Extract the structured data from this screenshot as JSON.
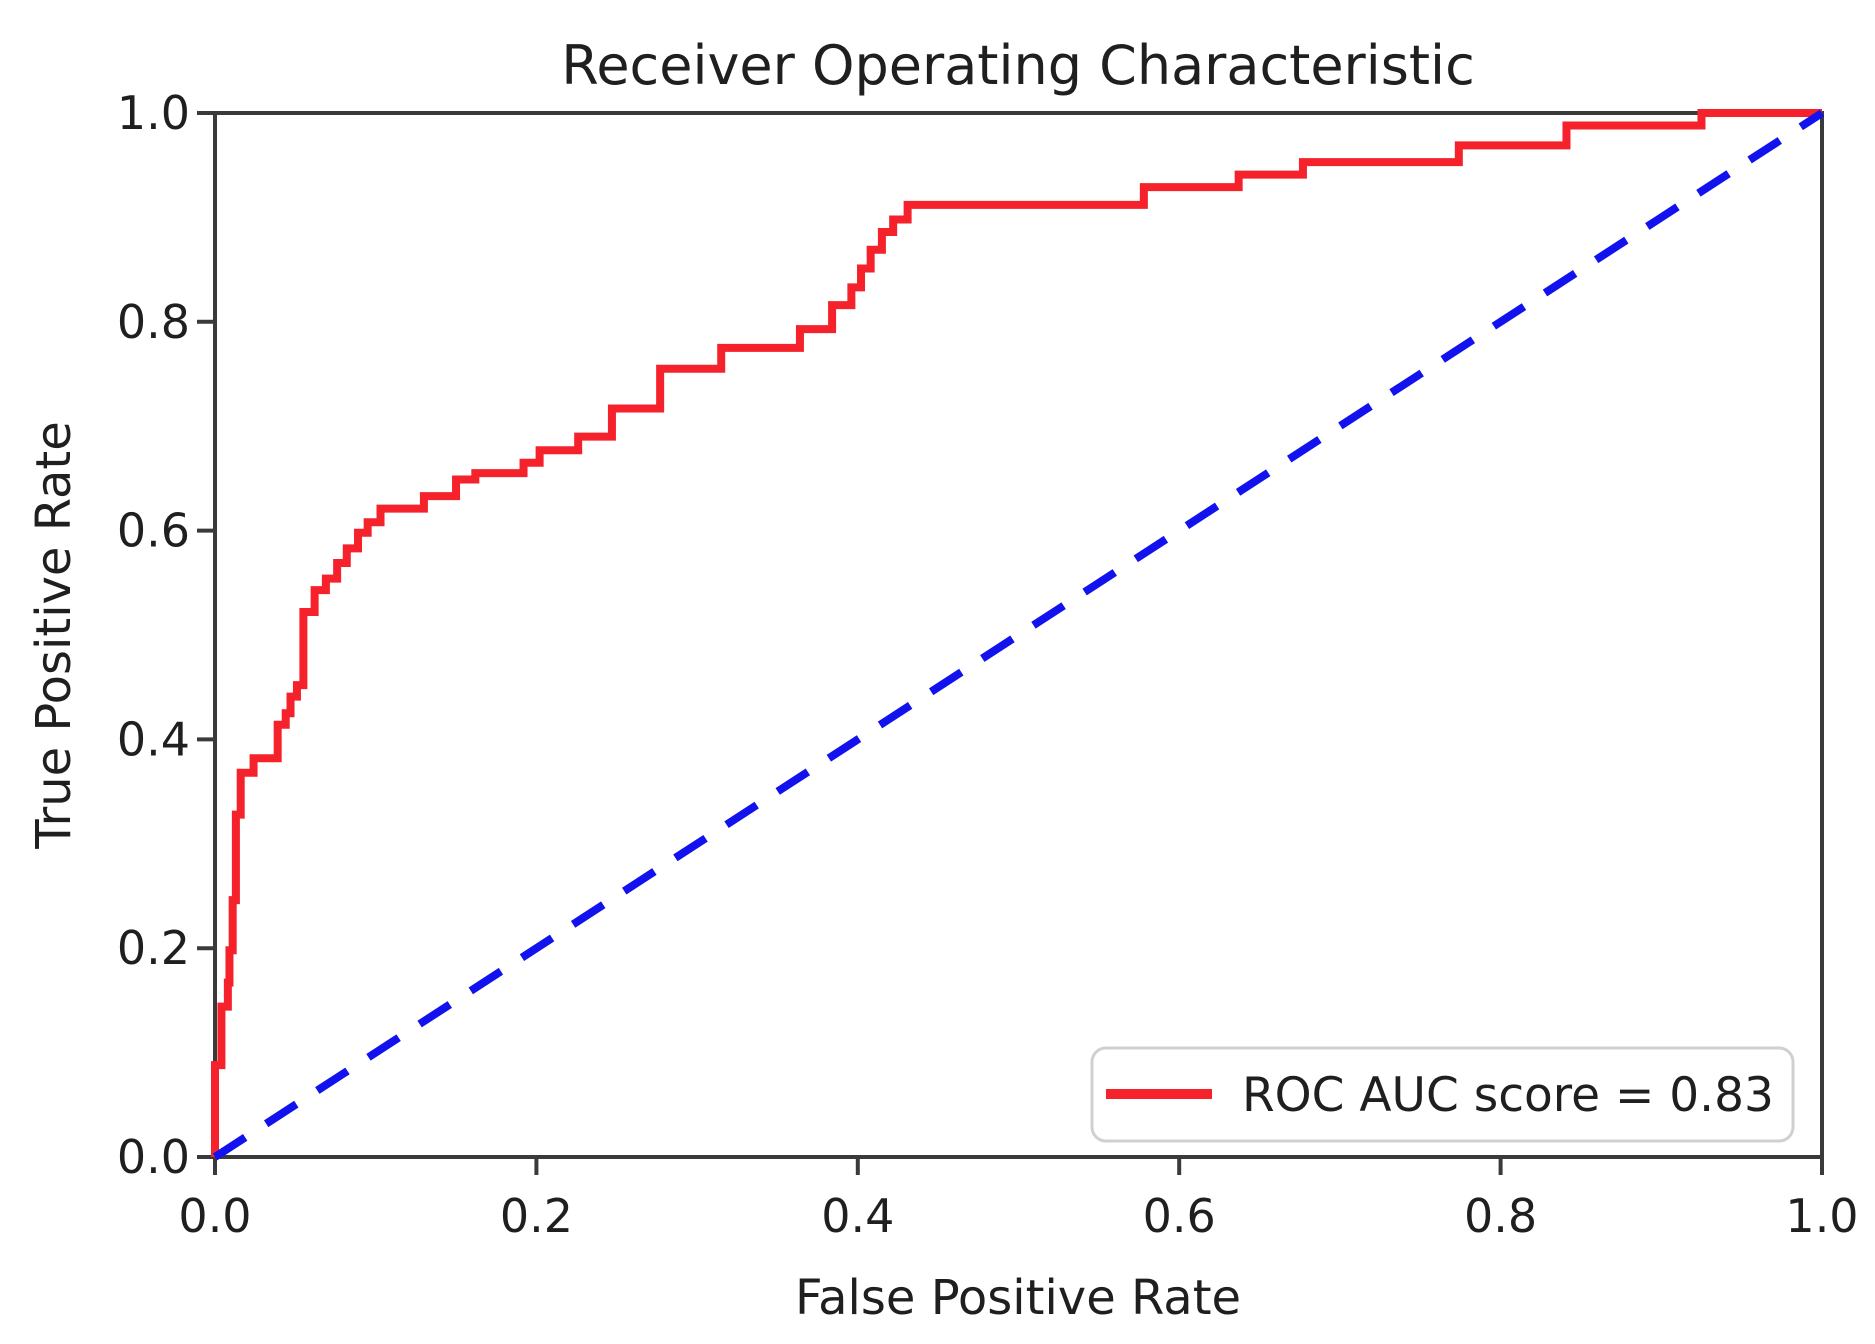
{
  "figure": {
    "background": "#ffffff",
    "spine_color": "#3a3a3a",
    "text_color": "#1f1f1f"
  },
  "legend": {
    "position": "lower right",
    "label": "ROC AUC score = 0.83",
    "swatch_color": "#f5212b",
    "border_color": "#d0d0d0",
    "background": "#ffffff"
  },
  "chart_data": {
    "type": "line",
    "subtype": "roc-step-curve",
    "title": "Receiver Operating Characteristic",
    "xlabel": "False Positive Rate",
    "ylabel": "True Positive Rate",
    "xlim": [
      0.0,
      1.0
    ],
    "ylim": [
      0.0,
      1.0
    ],
    "x_ticks": [
      0.0,
      0.2,
      0.4,
      0.6,
      0.8,
      1.0
    ],
    "y_ticks": [
      0.0,
      0.2,
      0.4,
      0.6,
      0.8,
      1.0
    ],
    "grid": false,
    "legend_position": "lower right",
    "auc_score": 0.83,
    "series": [
      {
        "name": "ROC curve",
        "draw": "step-hv",
        "color": "#f5212b",
        "linewidth": 8,
        "start": [
          0.0,
          0.0
        ],
        "points": [
          [
            0.0,
            0.088
          ],
          [
            0.004,
            0.144
          ],
          [
            0.008,
            0.167
          ],
          [
            0.009,
            0.198
          ],
          [
            0.011,
            0.246
          ],
          [
            0.013,
            0.328
          ],
          [
            0.016,
            0.368
          ],
          [
            0.024,
            0.382
          ],
          [
            0.039,
            0.414
          ],
          [
            0.044,
            0.425
          ],
          [
            0.047,
            0.441
          ],
          [
            0.051,
            0.452
          ],
          [
            0.055,
            0.522
          ],
          [
            0.062,
            0.543
          ],
          [
            0.069,
            0.554
          ],
          [
            0.076,
            0.569
          ],
          [
            0.082,
            0.583
          ],
          [
            0.089,
            0.598
          ],
          [
            0.095,
            0.608
          ],
          [
            0.103,
            0.621
          ],
          [
            0.13,
            0.633
          ],
          [
            0.15,
            0.649
          ],
          [
            0.162,
            0.655
          ],
          [
            0.192,
            0.665
          ],
          [
            0.202,
            0.677
          ],
          [
            0.226,
            0.69
          ],
          [
            0.247,
            0.717
          ],
          [
            0.277,
            0.755
          ],
          [
            0.315,
            0.775
          ],
          [
            0.364,
            0.793
          ],
          [
            0.384,
            0.816
          ],
          [
            0.396,
            0.833
          ],
          [
            0.402,
            0.851
          ],
          [
            0.408,
            0.869
          ],
          [
            0.415,
            0.886
          ],
          [
            0.422,
            0.898
          ],
          [
            0.431,
            0.912
          ],
          [
            0.578,
            0.929
          ],
          [
            0.637,
            0.941
          ],
          [
            0.677,
            0.953
          ],
          [
            0.774,
            0.969
          ],
          [
            0.841,
            0.988
          ],
          [
            0.925,
            1.0
          ],
          [
            1.0,
            1.0
          ]
        ]
      },
      {
        "name": "Chance diagonal",
        "draw": "dashed-line",
        "color": "#1212ee",
        "linewidth": 8,
        "dash": [
          36,
          25
        ],
        "points": [
          [
            0.0,
            0.0
          ],
          [
            1.0,
            1.0
          ]
        ]
      }
    ]
  }
}
